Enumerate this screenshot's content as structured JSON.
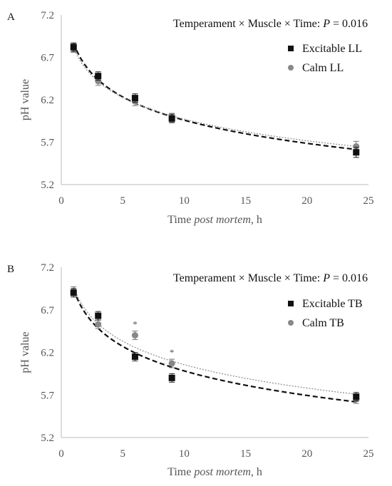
{
  "chart_data": [
    {
      "type": "scatter",
      "panel_label": "A",
      "annotation_prefix": "Temperament × Muscle × Time: ",
      "annotation_p": "P",
      "annotation_suffix": " = 0.016",
      "xlabel_prefix": "Time ",
      "xlabel_italic": "post mortem",
      "xlabel_suffix": ", h",
      "ylabel": "pH value",
      "xlim": [
        0,
        25
      ],
      "ylim": [
        5.2,
        7.2
      ],
      "xticks": [
        "0",
        "5",
        "10",
        "15",
        "20",
        "25"
      ],
      "yticks": [
        "5.2",
        "5.7",
        "6.2",
        "6.7",
        "7.2"
      ],
      "grid": false,
      "legend_position": "top-right",
      "series": [
        {
          "name": "Excitable LL",
          "marker": "square",
          "color": "#111111",
          "x": [
            1,
            3,
            6,
            9,
            24
          ],
          "y": [
            6.82,
            6.48,
            6.22,
            5.98,
            5.58
          ],
          "err": [
            0.05,
            0.05,
            0.05,
            0.05,
            0.06
          ],
          "trend": "log",
          "trend_style": "dashed-black"
        },
        {
          "name": "Calm LL",
          "marker": "circle",
          "color": "#888888",
          "x": [
            1,
            3,
            6,
            9,
            24
          ],
          "y": [
            6.81,
            6.42,
            6.18,
            5.99,
            5.65
          ],
          "err": [
            0.05,
            0.05,
            0.05,
            0.05,
            0.06
          ],
          "trend": "log",
          "trend_style": "dotted-gray"
        }
      ],
      "significance_markers": []
    },
    {
      "type": "scatter",
      "panel_label": "B",
      "annotation_prefix": "Temperament × Muscle × Time: ",
      "annotation_p": "P",
      "annotation_suffix": " = 0.016",
      "xlabel_prefix": "Time ",
      "xlabel_italic": "post mortem",
      "xlabel_suffix": ", h",
      "ylabel": "pH value",
      "xlim": [
        0,
        25
      ],
      "ylim": [
        5.2,
        7.2
      ],
      "xticks": [
        "0",
        "5",
        "10",
        "15",
        "20",
        "25"
      ],
      "yticks": [
        "5.2",
        "5.7",
        "6.2",
        "6.7",
        "7.2"
      ],
      "grid": false,
      "legend_position": "top-right",
      "series": [
        {
          "name": "Excitable TB",
          "marker": "square",
          "color": "#111111",
          "x": [
            1,
            3,
            6,
            9,
            24
          ],
          "y": [
            6.9,
            6.63,
            6.15,
            5.9,
            5.68
          ],
          "err": [
            0.05,
            0.05,
            0.05,
            0.05,
            0.05
          ],
          "trend": "log",
          "trend_style": "dashed-black"
        },
        {
          "name": "Calm TB",
          "marker": "circle",
          "color": "#888888",
          "x": [
            1,
            3,
            6,
            9,
            24
          ],
          "y": [
            6.92,
            6.53,
            6.4,
            6.07,
            5.65
          ],
          "err": [
            0.05,
            0.05,
            0.05,
            0.05,
            0.05
          ],
          "trend": "log",
          "trend_style": "dotted-gray"
        }
      ],
      "significance_markers": [
        {
          "x": 6,
          "text": "*"
        },
        {
          "x": 9,
          "text": "*"
        }
      ]
    }
  ]
}
